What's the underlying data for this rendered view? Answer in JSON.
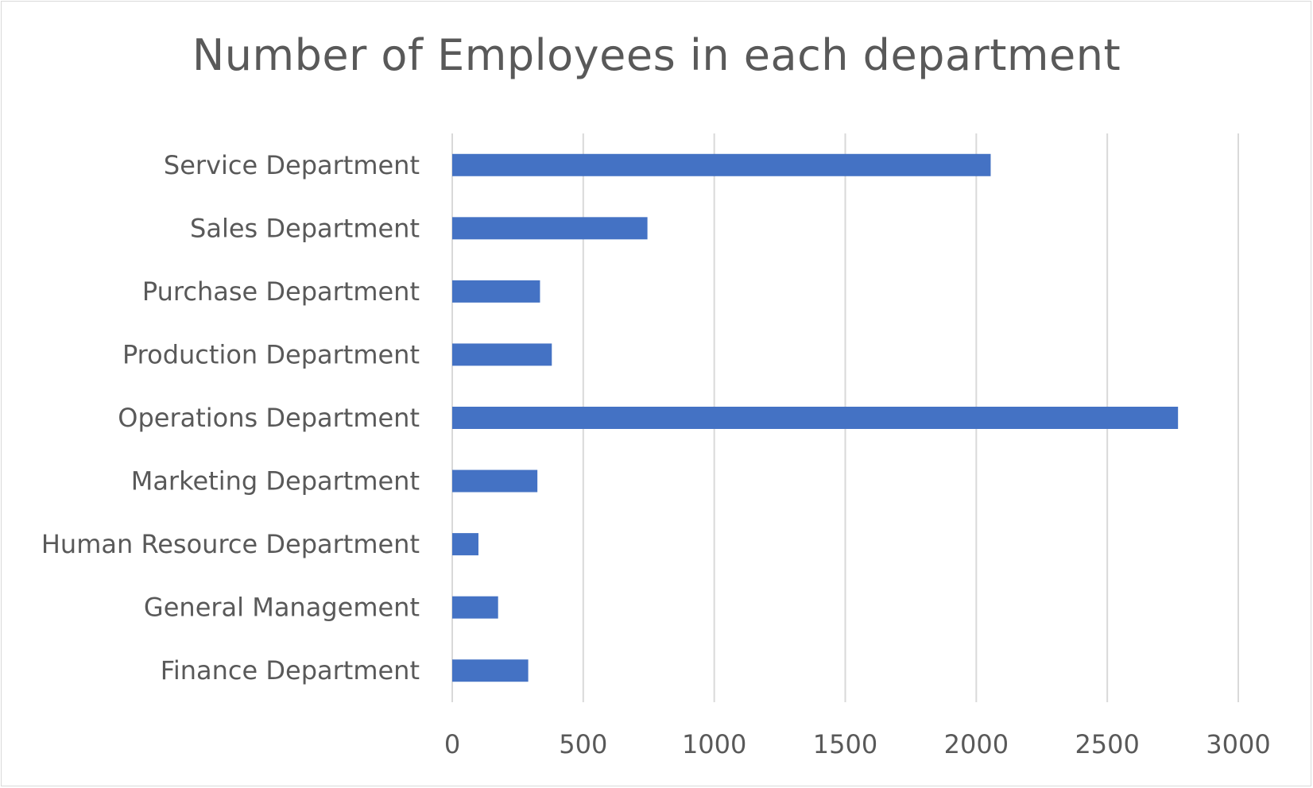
{
  "chart_data": {
    "type": "bar",
    "orientation": "horizontal",
    "title": "Number of Employees in each department",
    "xlabel": "",
    "ylabel": "",
    "categories": [
      "Finance Department",
      "General Management",
      "Human Resource Department",
      "Marketing Department",
      "Operations Department",
      "Production Department",
      "Purchase Department",
      "Sales Department",
      "Service Department"
    ],
    "values": [
      290,
      175,
      100,
      325,
      2770,
      380,
      335,
      745,
      2055
    ],
    "xlim": [
      0,
      3000
    ],
    "x_ticks": [
      "0",
      "500",
      "1000",
      "1500",
      "2000",
      "2500",
      "3000"
    ],
    "grid": "vertical",
    "legend": "none",
    "bar_color": "#4472c4"
  }
}
